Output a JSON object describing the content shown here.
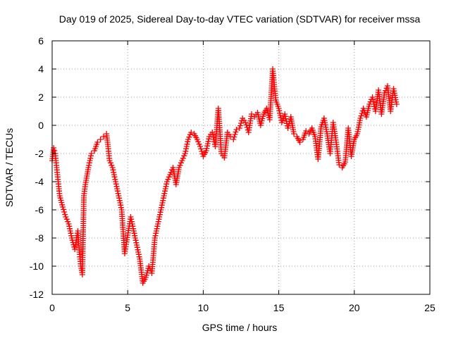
{
  "chart_data": {
    "type": "scatter",
    "title": "Day 019 of 2025, Sidereal Day-to-day VTEC variation (SDTVAR) for receiver mssa",
    "xlabel": "GPS time / hours",
    "ylabel": "SDTVAR / TECUs",
    "xlim": [
      0,
      25
    ],
    "ylim": [
      -12,
      6
    ],
    "xticks": [
      0,
      5,
      10,
      15,
      20,
      25
    ],
    "yticks": [
      -12,
      -10,
      -8,
      -6,
      -4,
      -2,
      0,
      2,
      4,
      6
    ],
    "grid": true,
    "marker": "+",
    "colors": {
      "series": "#ff0000",
      "grid": "#a0a0a0",
      "axis": "#000000"
    },
    "series": [
      {
        "name": "SDTVAR",
        "x": [
          0.0,
          0.1,
          0.2,
          0.3,
          0.4,
          0.5,
          0.7,
          0.9,
          1.1,
          1.3,
          1.5,
          1.7,
          1.8,
          1.9,
          2.0,
          2.1,
          2.2,
          2.4,
          2.6,
          2.8,
          3.0,
          3.2,
          3.4,
          3.6,
          3.7,
          3.8,
          4.0,
          4.2,
          4.4,
          4.6,
          4.8,
          5.0,
          5.2,
          5.4,
          5.6,
          5.8,
          6.0,
          6.2,
          6.4,
          6.6,
          6.8,
          7.0,
          7.2,
          7.4,
          7.6,
          7.8,
          8.0,
          8.2,
          8.4,
          8.6,
          8.8,
          9.0,
          9.2,
          9.4,
          9.6,
          9.8,
          10.0,
          10.2,
          10.4,
          10.6,
          10.8,
          11.0,
          11.2,
          11.4,
          11.6,
          11.8,
          12.0,
          12.2,
          12.4,
          12.6,
          12.8,
          13.0,
          13.2,
          13.4,
          13.6,
          13.8,
          14.0,
          14.2,
          14.4,
          14.6,
          14.8,
          15.0,
          15.2,
          15.4,
          15.6,
          15.8,
          16.0,
          16.2,
          16.4,
          16.6,
          16.8,
          17.0,
          17.2,
          17.4,
          17.6,
          17.8,
          18.0,
          18.2,
          18.4,
          18.6,
          18.8,
          19.0,
          19.2,
          19.4,
          19.6,
          19.8,
          20.0,
          20.2,
          20.4,
          20.6,
          20.8,
          21.0,
          21.2,
          21.4,
          21.6,
          21.8,
          22.0,
          22.2,
          22.4,
          22.6,
          22.8
        ],
        "y": [
          -2.5,
          -1.6,
          -2.0,
          -3.0,
          -4.0,
          -5.0,
          -5.8,
          -6.5,
          -7.0,
          -8.0,
          -8.8,
          -7.5,
          -9.0,
          -10.0,
          -10.6,
          -5.0,
          -4.2,
          -3.0,
          -2.0,
          -1.8,
          -1.2,
          -1.0,
          -0.8,
          -0.6,
          -1.5,
          -2.5,
          -3.0,
          -4.0,
          -5.0,
          -6.0,
          -9.1,
          -7.8,
          -6.5,
          -7.5,
          -8.5,
          -9.5,
          -11.2,
          -10.8,
          -10.0,
          -10.5,
          -8.0,
          -7.0,
          -6.0,
          -5.0,
          -4.0,
          -3.5,
          -3.0,
          -4.2,
          -3.0,
          -2.5,
          -2.0,
          -1.0,
          -0.5,
          -0.6,
          -1.0,
          -1.5,
          -2.2,
          -1.8,
          -0.8,
          -0.5,
          -1.5,
          1.2,
          -2.0,
          -2.3,
          -0.5,
          -0.8,
          -1.0,
          -0.3,
          -0.2,
          0.5,
          0.2,
          -0.5,
          0.8,
          0.6,
          0.9,
          0.0,
          0.8,
          1.2,
          0.4,
          4.0,
          1.8,
          1.2,
          0.2,
          0.8,
          -0.2,
          0.6,
          -0.6,
          -0.8,
          -1.2,
          -1.0,
          -0.4,
          -0.6,
          -0.2,
          -0.8,
          -2.4,
          -0.1,
          0.5,
          -0.6,
          -2.0,
          0.2,
          -1.2,
          -2.8,
          -3.0,
          -2.6,
          -0.2,
          -2.2,
          -1.0,
          -0.6,
          0.5,
          1.2,
          0.6,
          1.5,
          2.0,
          1.0,
          2.5,
          0.8,
          2.3,
          2.8,
          1.0,
          2.6,
          1.5
        ]
      }
    ]
  }
}
